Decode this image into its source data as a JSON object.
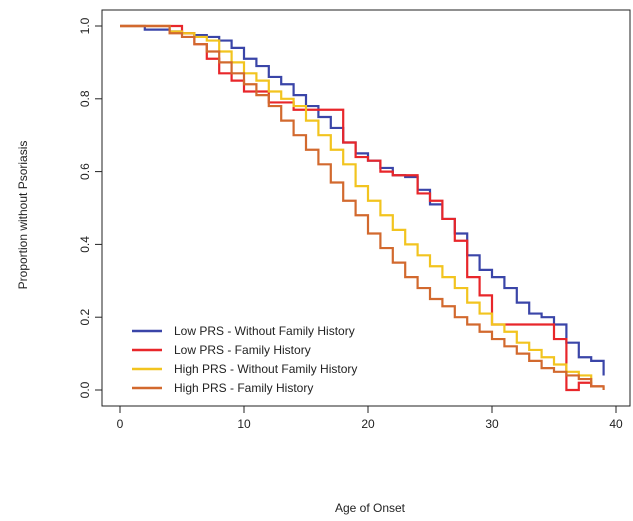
{
  "chart_data": {
    "type": "line",
    "step": true,
    "xlabel": "Age of Onset",
    "ylabel": "Proportion without Psoriasis",
    "xlim": [
      0,
      40
    ],
    "ylim": [
      0,
      1.0
    ],
    "x_ticks": [
      0,
      10,
      20,
      30,
      40
    ],
    "x_tick_labels": [
      "0",
      "10",
      "20",
      "30",
      "40"
    ],
    "y_ticks": [
      0.0,
      0.2,
      0.4,
      0.6,
      0.8,
      1.0
    ],
    "y_tick_labels": [
      "0.0",
      "0.2",
      "0.4",
      "0.6",
      "0.8",
      "1.0"
    ],
    "grid": false,
    "legend_position": "bottom-left",
    "series": [
      {
        "name": "Low PRS - Without Family History",
        "color": "#3a45a8",
        "x": [
          0,
          2,
          4,
          5,
          6,
          7,
          8,
          9,
          10,
          11,
          12,
          13,
          14,
          15,
          16,
          17,
          18,
          19,
          20,
          21,
          22,
          23,
          24,
          25,
          26,
          27,
          28,
          29,
          30,
          31,
          32,
          33,
          34,
          35,
          36,
          37,
          38,
          39
        ],
        "y": [
          1.0,
          0.99,
          0.985,
          0.98,
          0.975,
          0.97,
          0.96,
          0.94,
          0.91,
          0.89,
          0.86,
          0.84,
          0.81,
          0.78,
          0.75,
          0.72,
          0.68,
          0.65,
          0.63,
          0.61,
          0.59,
          0.585,
          0.55,
          0.51,
          0.47,
          0.43,
          0.37,
          0.33,
          0.31,
          0.28,
          0.24,
          0.21,
          0.2,
          0.18,
          0.13,
          0.09,
          0.08,
          0.04
        ]
      },
      {
        "name": "Low PRS - Family History",
        "color": "#e8262a",
        "x": [
          0,
          5,
          6,
          7,
          8,
          9,
          10,
          12,
          14,
          16,
          18,
          19,
          20,
          21,
          22,
          24,
          25,
          26,
          27,
          28,
          29,
          30,
          32,
          34,
          35,
          36,
          37,
          38,
          39
        ],
        "y": [
          1.0,
          0.98,
          0.95,
          0.91,
          0.87,
          0.85,
          0.82,
          0.79,
          0.77,
          0.77,
          0.68,
          0.64,
          0.63,
          0.6,
          0.59,
          0.54,
          0.52,
          0.47,
          0.41,
          0.31,
          0.26,
          0.18,
          0.18,
          0.18,
          0.14,
          0.0,
          0.02,
          0.01,
          0.01
        ]
      },
      {
        "name": "High PRS - Without Family History",
        "color": "#f2c41f",
        "x": [
          0,
          4,
          5,
          6,
          7,
          8,
          9,
          10,
          11,
          12,
          13,
          14,
          15,
          16,
          17,
          18,
          19,
          20,
          21,
          22,
          23,
          24,
          25,
          26,
          27,
          28,
          29,
          30,
          31,
          32,
          33,
          34,
          35,
          36,
          37,
          38
        ],
        "y": [
          1.0,
          0.985,
          0.98,
          0.97,
          0.96,
          0.93,
          0.9,
          0.87,
          0.85,
          0.82,
          0.8,
          0.78,
          0.74,
          0.7,
          0.66,
          0.62,
          0.56,
          0.52,
          0.48,
          0.44,
          0.4,
          0.37,
          0.34,
          0.31,
          0.28,
          0.24,
          0.21,
          0.18,
          0.16,
          0.13,
          0.11,
          0.09,
          0.07,
          0.05,
          0.04,
          0.02
        ]
      },
      {
        "name": "High PRS - Family History",
        "color": "#d2692e",
        "x": [
          0,
          4,
          5,
          6,
          7,
          8,
          9,
          10,
          11,
          12,
          13,
          14,
          15,
          16,
          17,
          18,
          19,
          20,
          21,
          22,
          23,
          24,
          25,
          26,
          27,
          28,
          29,
          30,
          31,
          32,
          33,
          34,
          35,
          36,
          37,
          38,
          39
        ],
        "y": [
          1.0,
          0.98,
          0.97,
          0.95,
          0.93,
          0.9,
          0.87,
          0.84,
          0.81,
          0.78,
          0.74,
          0.7,
          0.66,
          0.62,
          0.57,
          0.52,
          0.48,
          0.43,
          0.39,
          0.35,
          0.31,
          0.28,
          0.25,
          0.23,
          0.2,
          0.18,
          0.16,
          0.14,
          0.12,
          0.1,
          0.08,
          0.06,
          0.05,
          0.04,
          0.03,
          0.01,
          0.0
        ]
      }
    ]
  }
}
